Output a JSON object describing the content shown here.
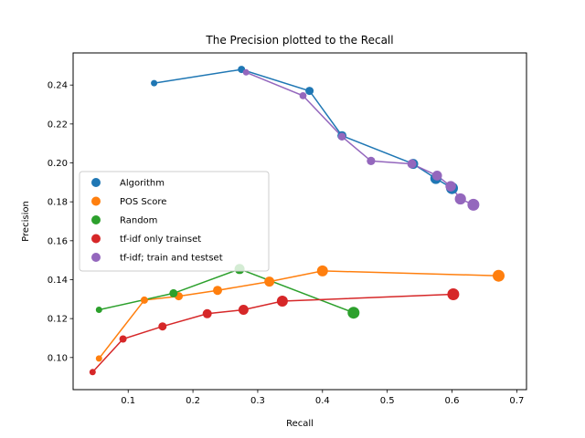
{
  "chart_data": {
    "type": "scatter",
    "title": "The Precision plotted to the Recall",
    "xlabel": "Recall",
    "ylabel": "Precision",
    "xlim": [
      0.015,
      0.715
    ],
    "ylim": [
      0.0835,
      0.2565
    ],
    "xticks": [
      0.1,
      0.2,
      0.3,
      0.4,
      0.5,
      0.6,
      0.7
    ],
    "yticks": [
      0.1,
      0.12,
      0.14,
      0.16,
      0.18,
      0.2,
      0.22,
      0.24
    ],
    "xtick_labels": [
      "0.1",
      "0.2",
      "0.3",
      "0.4",
      "0.5",
      "0.6",
      "0.7"
    ],
    "ytick_labels": [
      "0.10",
      "0.12",
      "0.14",
      "0.16",
      "0.18",
      "0.20",
      "0.22",
      "0.24"
    ],
    "grid": false,
    "legend_position": "center-left",
    "series": [
      {
        "name": "Algorithm",
        "color": "#1f77b4",
        "x": [
          0.14,
          0.275,
          0.38,
          0.43,
          0.54,
          0.575,
          0.6
        ],
        "y": [
          0.241,
          0.248,
          0.237,
          0.214,
          0.1995,
          0.192,
          0.187
        ]
      },
      {
        "name": "POS Score",
        "color": "#ff7f0e",
        "x": [
          0.055,
          0.125,
          0.178,
          0.238,
          0.318,
          0.4,
          0.672
        ],
        "y": [
          0.0995,
          0.1295,
          0.1315,
          0.1345,
          0.139,
          0.1445,
          0.142
        ]
      },
      {
        "name": "Random",
        "color": "#2ca02c",
        "x": [
          0.055,
          0.17,
          0.272,
          0.448
        ],
        "y": [
          0.1245,
          0.133,
          0.1455,
          0.123
        ]
      },
      {
        "name": "tf-idf only trainset",
        "color": "#d62728",
        "x": [
          0.045,
          0.092,
          0.153,
          0.222,
          0.278,
          0.338,
          0.602
        ],
        "y": [
          0.0925,
          0.1095,
          0.116,
          0.1225,
          0.1245,
          0.129,
          0.1325
        ]
      },
      {
        "name": "tf-idf; train and testset",
        "color": "#9467bd",
        "x": [
          0.282,
          0.37,
          0.43,
          0.475,
          0.538,
          0.577,
          0.598,
          0.613,
          0.633
        ],
        "y": [
          0.2465,
          0.2345,
          0.2135,
          0.201,
          0.1995,
          0.1935,
          0.188,
          0.1815,
          0.1785
        ]
      }
    ]
  }
}
